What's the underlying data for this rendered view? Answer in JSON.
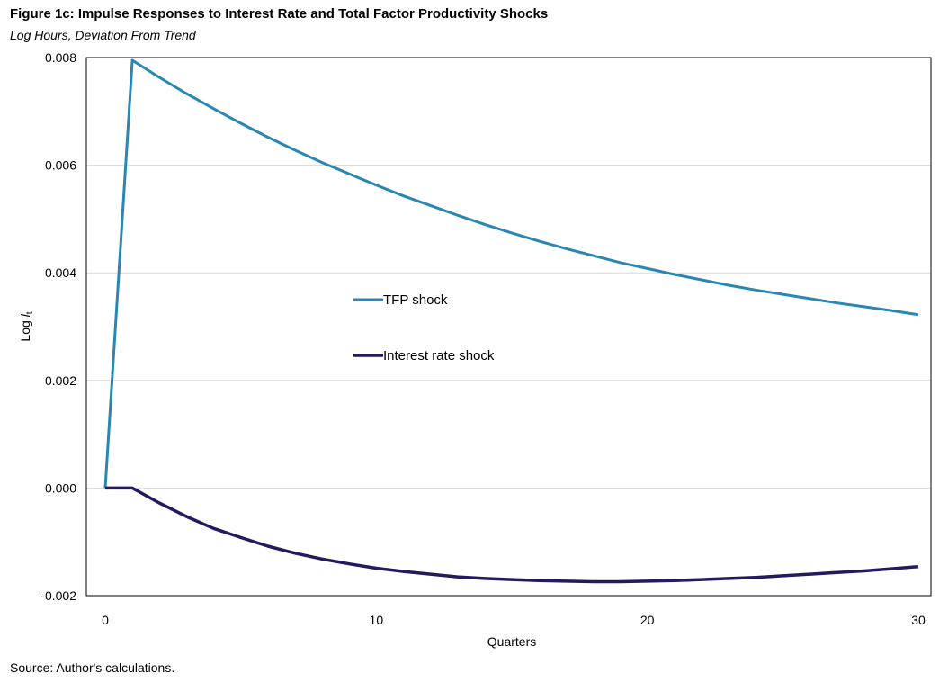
{
  "header": {
    "title": "Figure 1c: Impulse Responses to Interest Rate and Total Factor Productivity Shocks",
    "subtitle": "Log Hours, Deviation From Trend"
  },
  "footer": {
    "source": "Source: Author's calculations."
  },
  "colors": {
    "tfp": "#2a87b1",
    "interest": "#251a5e",
    "grid": "#d9d9d9",
    "frame": "#000000"
  },
  "chart_data": {
    "type": "line",
    "xlabel": "Quarters",
    "ylabel_main": "Log ",
    "ylabel_var": "l",
    "ylabel_sub": "t",
    "xlim": [
      0,
      30
    ],
    "ylim": [
      -0.002,
      0.008
    ],
    "x_ticks": [
      "0",
      "10",
      "20",
      "30"
    ],
    "x_tick_values": [
      0,
      10,
      20,
      30
    ],
    "y_ticks": [
      "-0.002",
      "0.000",
      "0.002",
      "0.004",
      "0.006",
      "0.008"
    ],
    "y_tick_values": [
      -0.002,
      0.0,
      0.002,
      0.004,
      0.006,
      0.008
    ],
    "grid": true,
    "legend_position": "center-left",
    "x": [
      0,
      1,
      2,
      3,
      4,
      5,
      6,
      7,
      8,
      9,
      10,
      11,
      12,
      13,
      14,
      15,
      16,
      17,
      18,
      19,
      20,
      21,
      22,
      23,
      24,
      25,
      26,
      27,
      28,
      29,
      30
    ],
    "series": [
      {
        "name": "TFP shock",
        "color_key": "tfp",
        "values": [
          0.0,
          0.00795,
          0.00763,
          0.00733,
          0.00705,
          0.00678,
          0.00652,
          0.00628,
          0.00605,
          0.00584,
          0.00563,
          0.00543,
          0.00525,
          0.00507,
          0.0049,
          0.00474,
          0.00459,
          0.00445,
          0.00432,
          0.00419,
          0.00408,
          0.00397,
          0.00387,
          0.00377,
          0.00368,
          0.0036,
          0.00352,
          0.00344,
          0.00337,
          0.0033,
          0.00322
        ]
      },
      {
        "name": "Interest rate shock",
        "color_key": "interest",
        "values": [
          0.0,
          0.0,
          -0.00028,
          -0.00053,
          -0.00075,
          -0.00092,
          -0.00108,
          -0.00121,
          -0.00132,
          -0.00141,
          -0.00149,
          -0.00155,
          -0.0016,
          -0.00165,
          -0.00168,
          -0.0017,
          -0.00172,
          -0.00173,
          -0.00174,
          -0.00174,
          -0.00173,
          -0.00172,
          -0.0017,
          -0.00168,
          -0.00166,
          -0.00163,
          -0.0016,
          -0.00157,
          -0.00154,
          -0.0015,
          -0.00146
        ]
      }
    ]
  }
}
